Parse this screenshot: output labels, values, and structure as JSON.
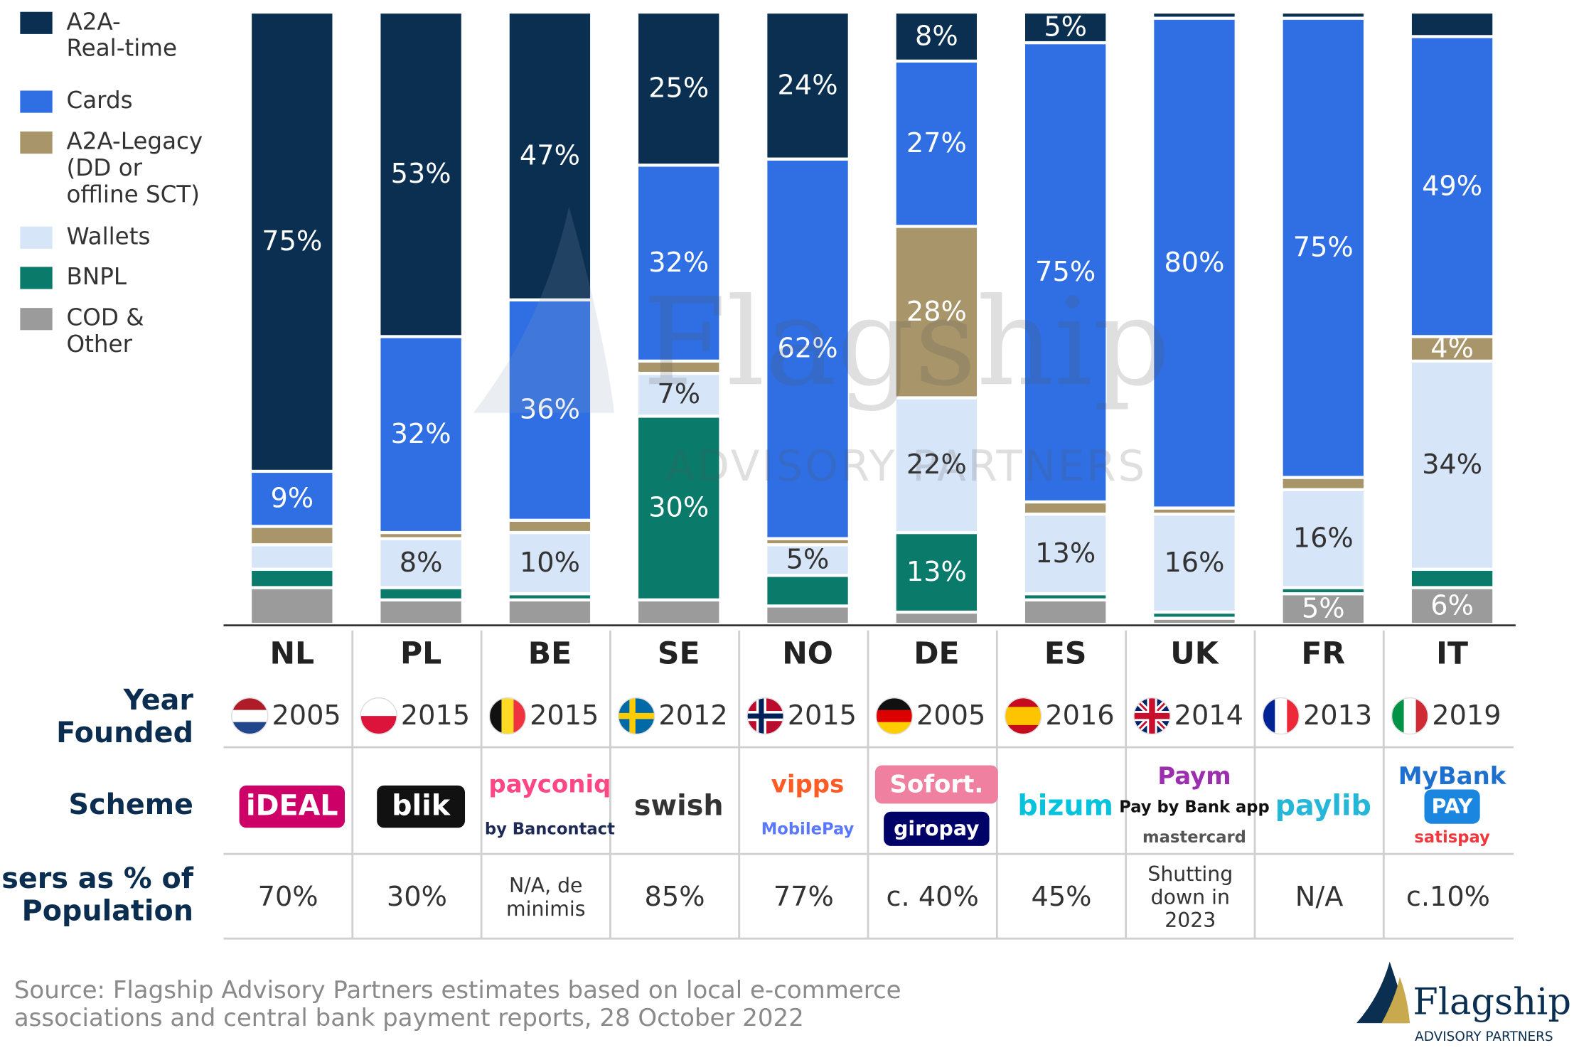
{
  "chart_data": {
    "type": "bar",
    "stacked": true,
    "categories": [
      "NL",
      "PL",
      "BE",
      "SE",
      "NO",
      "DE",
      "ES",
      "UK",
      "FR",
      "IT"
    ],
    "ylim": [
      0,
      100
    ],
    "legend": "left",
    "series": [
      {
        "name": "A2A-\nReal-time",
        "color": "#0a2f50",
        "label_color": "#ffffff",
        "values": [
          75,
          53,
          47,
          25,
          24,
          8,
          5,
          1,
          1,
          4
        ],
        "value_labels": [
          "75%",
          "53%",
          "47%",
          "25%",
          "24%",
          "8%",
          "5%",
          null,
          null,
          null
        ]
      },
      {
        "name": "Cards",
        "color": "#2f6fe3",
        "label_color": "#ffffff",
        "values": [
          9,
          32,
          36,
          32,
          62,
          27,
          75,
          80,
          75,
          49
        ],
        "value_labels": [
          "9%",
          "32%",
          "36%",
          "32%",
          "62%",
          "27%",
          "75%",
          "80%",
          "75%",
          "49%"
        ]
      },
      {
        "name": "A2A-Legacy\n(DD or\noffline SCT)",
        "color": "#a8956a",
        "label_color": "#ffffff",
        "values": [
          3,
          1,
          2,
          2,
          1,
          28,
          2,
          1,
          2,
          4
        ],
        "value_labels": [
          null,
          null,
          null,
          null,
          null,
          "28%",
          null,
          null,
          null,
          "4%"
        ]
      },
      {
        "name": "Wallets",
        "color": "#d7e5f8",
        "label_color": "#333333",
        "values": [
          4,
          8,
          10,
          7,
          5,
          22,
          13,
          16,
          16,
          34
        ],
        "value_labels": [
          null,
          "8%",
          "10%",
          "7%",
          "5%",
          "22%",
          "13%",
          "16%",
          "16%",
          "34%"
        ]
      },
      {
        "name": "BNPL",
        "color": "#0a7a6b",
        "label_color": "#ffffff",
        "values": [
          3,
          2,
          1,
          30,
          5,
          13,
          1,
          1,
          1,
          3
        ],
        "value_labels": [
          null,
          null,
          null,
          "30%",
          null,
          "13%",
          null,
          null,
          null,
          null
        ]
      },
      {
        "name": "COD &\nOther",
        "color": "#9b9b9b",
        "label_color": "#ffffff",
        "values": [
          6,
          4,
          4,
          4,
          3,
          2,
          4,
          1,
          5,
          6
        ],
        "value_labels": [
          null,
          null,
          null,
          null,
          null,
          null,
          null,
          null,
          "5%",
          "6%"
        ]
      }
    ]
  },
  "table": {
    "row_labels": {
      "year": "Year\nFounded",
      "scheme": "Scheme",
      "users": "Users as % of\nPopulation"
    },
    "years": [
      2005,
      2015,
      2015,
      2012,
      2015,
      2005,
      2016,
      2014,
      2013,
      2019
    ],
    "schemes": [
      [
        {
          "text": "iDEAL",
          "color": "#ffffff",
          "bg": "#cc0066"
        }
      ],
      [
        {
          "text": "blik",
          "color": "#ffffff",
          "bg": "#111111"
        }
      ],
      [
        {
          "text": "payconiq",
          "color": "#ff4785"
        },
        {
          "text": "by Bancontact",
          "color": "#1e2a55"
        }
      ],
      [
        {
          "text": "swish",
          "color": "#333333"
        }
      ],
      [
        {
          "text": "vipps",
          "color": "#ff5b24"
        },
        {
          "text": "MobilePay",
          "color": "#5a78ff"
        }
      ],
      [
        {
          "text": "Sofort.",
          "color": "#ffffff",
          "bg": "#ef809f"
        },
        {
          "text": "giropay",
          "color": "#ffffff",
          "bg": "#000268"
        }
      ],
      [
        {
          "text": "bizum",
          "color": "#05c3dd"
        }
      ],
      [
        {
          "text": "Paym",
          "color": "#9b2fae"
        },
        {
          "text": "Pay by Bank app",
          "color": "#111111"
        },
        {
          "text": "mastercard",
          "color": "#555555"
        }
      ],
      [
        {
          "text": "paylib",
          "color": "#26b6d8"
        }
      ],
      [
        {
          "text": "MyBank",
          "color": "#1d6fd0"
        },
        {
          "text": "PAY",
          "color": "#ffffff",
          "bg": "#1b86e0"
        },
        {
          "text": "satispay",
          "color": "#ef373e"
        }
      ]
    ],
    "users": [
      "70%",
      "30%",
      "N/A, de\nminimis",
      "85%",
      "77%",
      "c. 40%",
      "45%",
      "Shutting\ndown in\n2023",
      "N/A",
      "c.10%"
    ]
  },
  "watermark": {
    "title": "Flagship",
    "subtitle": "ADVISORY PARTNERS"
  },
  "logo": {
    "title": "Flagship",
    "subtitle": "ADVISORY PARTNERS"
  },
  "source": "Source: Flagship Advisory Partners estimates based on local e-commerce\nassociations and central bank payment reports, 28 October 2022"
}
